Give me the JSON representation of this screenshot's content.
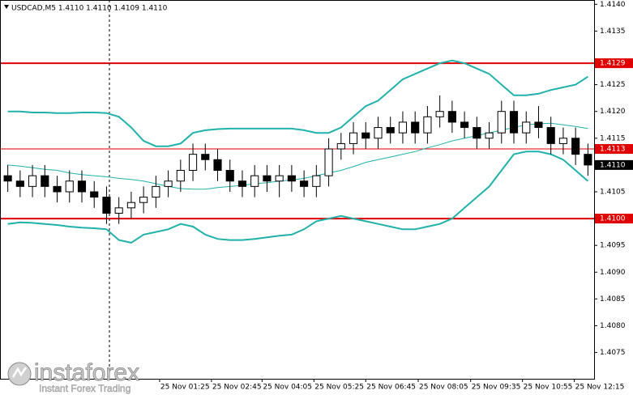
{
  "chart_data": {
    "type": "candlestick",
    "title": "USDCAD,M5  1.4110 1.4110 1.4109 1.4110",
    "xlim": [
      0,
      48
    ],
    "xticks": [
      {
        "value": 12.8,
        "label": "25 Nov 01:25"
      },
      {
        "value": 17.0,
        "label": "25 Nov 02:45"
      },
      {
        "value": 21.1,
        "label": "25 Nov 04:05"
      },
      {
        "value": 25.3,
        "label": "25 Nov 05:25"
      },
      {
        "value": 29.5,
        "label": "25 Nov 06:45"
      },
      {
        "value": 33.75,
        "label": "25 Nov 08:05"
      },
      {
        "value": 38.0,
        "label": "25 Nov 09:35"
      },
      {
        "value": 42.2,
        "label": "25 Nov 10:55"
      },
      {
        "value": 46.4,
        "label": "25 Nov 12:15"
      }
    ],
    "ylim": [
      1.40701,
      1.41408
    ],
    "yticks": [
      {
        "value": 1.414,
        "label": "1.4140"
      },
      1.4135,
      1.4125,
      {
        "value": 1.412,
        "label": "1.4120"
      },
      1.4115,
      1.4105,
      1.4095,
      {
        "value": 1.409,
        "label": "1.4090"
      },
      1.4085,
      {
        "value": 1.408,
        "label": "1.4080"
      },
      1.4075
    ],
    "levels": [
      {
        "value": 1.4129,
        "label": "1.4129",
        "color": "#e00000"
      },
      {
        "value": 1.4113,
        "label": "1.4113",
        "color": "#e00000"
      },
      {
        "value": 1.41,
        "label": "1.4100",
        "color": "#e00000"
      }
    ],
    "last": {
      "value": 1.411,
      "label": "1.4110"
    },
    "up_color": "#ffffff",
    "down_color": "#000000",
    "open": [
      1.4108,
      1.4107,
      1.4106,
      1.4108,
      1.4106,
      1.4105,
      1.4107,
      1.4105,
      1.4104,
      1.4101,
      1.4102,
      1.4103,
      1.4104,
      1.4106,
      1.4107,
      1.4109,
      1.4112,
      1.4111,
      1.4109,
      1.4107,
      1.4106,
      1.4108,
      1.4107,
      1.4108,
      1.4107,
      1.4106,
      1.4108,
      1.4113,
      1.4114,
      1.4116,
      1.4115,
      1.4117,
      1.4116,
      1.4118,
      1.4116,
      1.4119,
      1.412,
      1.4118,
      1.4117,
      1.4115,
      1.4116,
      1.412,
      1.4116,
      1.4118,
      1.4117,
      1.4114,
      1.4115,
      1.4112
    ],
    "high": [
      1.411,
      1.4109,
      1.411,
      1.411,
      1.4108,
      1.4109,
      1.4109,
      1.4107,
      1.4106,
      1.4104,
      1.4105,
      1.4106,
      1.4108,
      1.4109,
      1.4111,
      1.4114,
      1.4114,
      1.4113,
      1.4111,
      1.4109,
      1.411,
      1.411,
      1.411,
      1.411,
      1.4109,
      1.411,
      1.4115,
      1.4116,
      1.4118,
      1.4118,
      1.4119,
      1.4119,
      1.412,
      1.412,
      1.4121,
      1.4123,
      1.4122,
      1.412,
      1.4119,
      1.4118,
      1.4122,
      1.4122,
      1.412,
      1.4121,
      1.4119,
      1.4117,
      1.4117,
      1.4114
    ],
    "low": [
      1.4105,
      1.4104,
      1.4104,
      1.4104,
      1.4103,
      1.4103,
      1.4103,
      1.4102,
      1.4099,
      1.4099,
      1.41,
      1.4101,
      1.4102,
      1.4104,
      1.4105,
      1.4107,
      1.4109,
      1.4107,
      1.4105,
      1.4104,
      1.4104,
      1.4105,
      1.4104,
      1.4105,
      1.4104,
      1.4104,
      1.4106,
      1.4111,
      1.4112,
      1.4113,
      1.4113,
      1.4114,
      1.4114,
      1.4114,
      1.4114,
      1.4117,
      1.4116,
      1.4115,
      1.4113,
      1.4113,
      1.4114,
      1.4114,
      1.4114,
      1.4115,
      1.4112,
      1.4112,
      1.411,
      1.4108
    ],
    "close": [
      1.4107,
      1.4106,
      1.4108,
      1.4106,
      1.4105,
      1.4107,
      1.4105,
      1.4104,
      1.4101,
      1.4102,
      1.4103,
      1.4104,
      1.4106,
      1.4107,
      1.4109,
      1.4112,
      1.4111,
      1.4109,
      1.4107,
      1.4106,
      1.4108,
      1.4107,
      1.4108,
      1.4107,
      1.4106,
      1.4108,
      1.4113,
      1.4114,
      1.4116,
      1.4115,
      1.4117,
      1.4116,
      1.4118,
      1.4116,
      1.4119,
      1.412,
      1.4118,
      1.4117,
      1.4115,
      1.4116,
      1.412,
      1.4116,
      1.4118,
      1.4117,
      1.4114,
      1.4115,
      1.4112,
      1.411
    ],
    "bands": {
      "color": "#20b2aa",
      "upper": [
        1.412,
        1.412,
        1.41198,
        1.41198,
        1.41197,
        1.41197,
        1.41198,
        1.41198,
        1.41197,
        1.4119,
        1.4117,
        1.41145,
        1.41135,
        1.41135,
        1.4114,
        1.4116,
        1.41165,
        1.41167,
        1.41168,
        1.41168,
        1.41168,
        1.41168,
        1.41168,
        1.41168,
        1.41165,
        1.4116,
        1.4116,
        1.4117,
        1.4119,
        1.4121,
        1.4122,
        1.4124,
        1.4126,
        1.4127,
        1.4128,
        1.4129,
        1.41295,
        1.4129,
        1.4128,
        1.4127,
        1.4125,
        1.4123,
        1.4123,
        1.41233,
        1.4124,
        1.41245,
        1.4125,
        1.41265
      ],
      "middle": [
        1.411,
        1.41098,
        1.41095,
        1.41092,
        1.4109,
        1.41085,
        1.41082,
        1.4108,
        1.41078,
        1.41075,
        1.41073,
        1.4107,
        1.41065,
        1.4106,
        1.41056,
        1.41055,
        1.41055,
        1.41058,
        1.4106,
        1.41062,
        1.41065,
        1.41067,
        1.4107,
        1.41072,
        1.41075,
        1.4108,
        1.41085,
        1.4109,
        1.41097,
        1.41105,
        1.4111,
        1.41115,
        1.4112,
        1.41125,
        1.41132,
        1.41138,
        1.41145,
        1.4115,
        1.41155,
        1.4116,
        1.41165,
        1.4117,
        1.41175,
        1.41177,
        1.41178,
        1.41175,
        1.41172,
        1.41168
      ],
      "lower": [
        1.4099,
        1.40993,
        1.40992,
        1.4099,
        1.40988,
        1.40985,
        1.40983,
        1.40982,
        1.4098,
        1.4096,
        1.40955,
        1.4097,
        1.40975,
        1.4098,
        1.4099,
        1.40985,
        1.4097,
        1.40962,
        1.4096,
        1.4096,
        1.40962,
        1.40965,
        1.40968,
        1.4097,
        1.4098,
        1.40995,
        1.41,
        1.41005,
        1.41,
        1.40995,
        1.4099,
        1.40985,
        1.4098,
        1.4098,
        1.40985,
        1.4099,
        1.41,
        1.4102,
        1.4104,
        1.4106,
        1.4109,
        1.4112,
        1.41125,
        1.41125,
        1.4112,
        1.4111,
        1.4109,
        1.4107
      ]
    }
  },
  "logo": {
    "name": "instaforex",
    "tagline": "Instant Forex Trading"
  }
}
